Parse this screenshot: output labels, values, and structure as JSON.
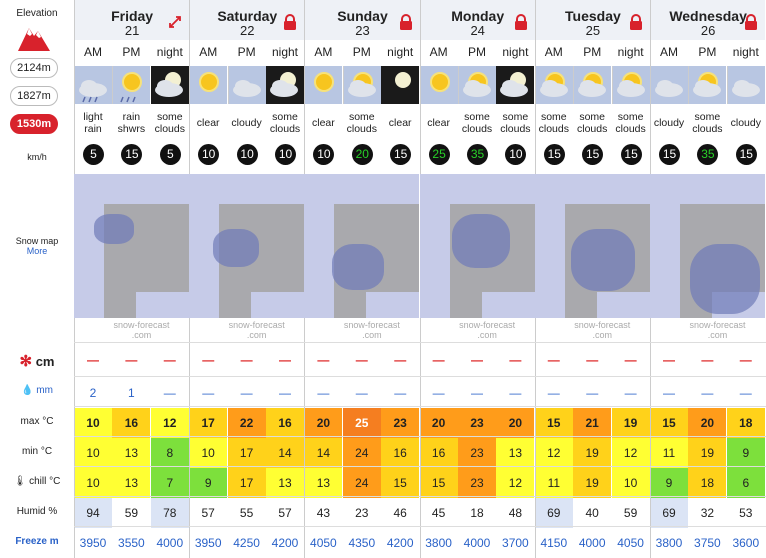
{
  "sidebar": {
    "elevation_label": "Elevation",
    "elevations": [
      "2124m",
      "1827m",
      "1530m"
    ],
    "active_elevation": "1530m",
    "wind_unit": "km/h",
    "snow_map_label": "Snow map",
    "more_link": "More",
    "snow_label": "cm",
    "rain_label": "mm",
    "max_label": "max °C",
    "min_label": "min °C",
    "chill_label": "chill °C",
    "humid_label": "Humid %",
    "freeze_label": "Freeze m"
  },
  "days": [
    {
      "name": "Friday",
      "num": "21",
      "icon": "expand-arrows-icon"
    },
    {
      "name": "Saturday",
      "num": "22",
      "icon": "lock-icon"
    },
    {
      "name": "Sunday",
      "num": "23",
      "icon": "lock-icon"
    },
    {
      "name": "Monday",
      "num": "24",
      "icon": "lock-icon"
    },
    {
      "name": "Tuesday",
      "num": "25",
      "icon": "lock-icon"
    },
    {
      "name": "Wednesday",
      "num": "26",
      "icon": "lock-icon"
    }
  ],
  "periods": [
    "AM",
    "PM",
    "night"
  ],
  "watermark": [
    "snow-forecast",
    ".com"
  ],
  "columns": [
    {
      "desc": "light rain",
      "wind": "5",
      "snow": "—",
      "rain": "2",
      "max": "10",
      "min": "10",
      "chill": "10",
      "humid": "94",
      "freeze": "3950",
      "icon": "cloud-rain-icon"
    },
    {
      "desc": "rain shwrs",
      "wind": "15",
      "snow": "—",
      "rain": "1",
      "max": "16",
      "min": "13",
      "chill": "13",
      "humid": "59",
      "freeze": "3550",
      "icon": "sun-rain-icon"
    },
    {
      "desc": "some clouds",
      "wind": "5",
      "snow": "—",
      "rain": "—",
      "max": "12",
      "min": "8",
      "chill": "7",
      "humid": "78",
      "freeze": "4000",
      "icon": "moon-cloud-icon"
    },
    {
      "desc": "clear",
      "wind": "10",
      "snow": "—",
      "rain": "—",
      "max": "17",
      "min": "10",
      "chill": "9",
      "humid": "57",
      "freeze": "3950",
      "icon": "sun-icon"
    },
    {
      "desc": "cloudy",
      "wind": "10",
      "snow": "—",
      "rain": "—",
      "max": "22",
      "min": "17",
      "chill": "17",
      "humid": "55",
      "freeze": "4250",
      "icon": "cloud-icon"
    },
    {
      "desc": "some clouds",
      "wind": "10",
      "snow": "—",
      "rain": "—",
      "max": "16",
      "min": "14",
      "chill": "13",
      "humid": "57",
      "freeze": "4200",
      "icon": "moon-cloud-icon"
    },
    {
      "desc": "clear",
      "wind": "10",
      "snow": "—",
      "rain": "—",
      "max": "20",
      "min": "14",
      "chill": "13",
      "humid": "43",
      "freeze": "4050",
      "icon": "sun-icon"
    },
    {
      "desc": "some clouds",
      "wind": "20",
      "snow": "—",
      "rain": "—",
      "max": "25",
      "min": "24",
      "chill": "24",
      "humid": "23",
      "freeze": "4350",
      "icon": "sun-cloud-icon"
    },
    {
      "desc": "clear",
      "wind": "15",
      "snow": "—",
      "rain": "—",
      "max": "23",
      "min": "16",
      "chill": "15",
      "humid": "46",
      "freeze": "4200",
      "icon": "moon-icon"
    },
    {
      "desc": "clear",
      "wind": "25",
      "snow": "—",
      "rain": "—",
      "max": "20",
      "min": "16",
      "chill": "15",
      "humid": "45",
      "freeze": "3800",
      "icon": "sun-icon"
    },
    {
      "desc": "some clouds",
      "wind": "35",
      "snow": "—",
      "rain": "—",
      "max": "23",
      "min": "23",
      "chill": "23",
      "humid": "18",
      "freeze": "4000",
      "icon": "sun-cloud-icon"
    },
    {
      "desc": "some clouds",
      "wind": "10",
      "snow": "—",
      "rain": "—",
      "max": "20",
      "min": "13",
      "chill": "12",
      "humid": "48",
      "freeze": "3700",
      "icon": "moon-cloud-icon"
    },
    {
      "desc": "some clouds",
      "wind": "15",
      "snow": "—",
      "rain": "—",
      "max": "15",
      "min": "12",
      "chill": "11",
      "humid": "69",
      "freeze": "4150",
      "icon": "sun-cloud-icon"
    },
    {
      "desc": "some clouds",
      "wind": "15",
      "snow": "—",
      "rain": "—",
      "max": "21",
      "min": "19",
      "chill": "19",
      "humid": "40",
      "freeze": "4000",
      "icon": "sun-cloud-icon"
    },
    {
      "desc": "some clouds",
      "wind": "15",
      "snow": "—",
      "rain": "—",
      "max": "19",
      "min": "12",
      "chill": "10",
      "humid": "59",
      "freeze": "4050",
      "icon": "sun-cloud-icon"
    },
    {
      "desc": "cloudy",
      "wind": "15",
      "snow": "—",
      "rain": "—",
      "max": "15",
      "min": "11",
      "chill": "9",
      "humid": "69",
      "freeze": "3800",
      "icon": "cloud-icon"
    },
    {
      "desc": "some clouds",
      "wind": "35",
      "snow": "—",
      "rain": "—",
      "max": "20",
      "min": "19",
      "chill": "18",
      "humid": "32",
      "freeze": "3750",
      "icon": "sun-cloud-icon"
    },
    {
      "desc": "cloudy",
      "wind": "15",
      "snow": "—",
      "rain": "—",
      "max": "18",
      "min": "9",
      "chill": "6",
      "humid": "53",
      "freeze": "3600",
      "icon": "cloud-icon"
    }
  ],
  "colors": {
    "active_elevation": "#d8222c",
    "lock": "#d8222c",
    "wind_green": "#28d028",
    "temp_scale": {
      "6-9": "#7de03c",
      "10-13": "#ffff33",
      "14-19": "#ffd21a",
      "20-24": "#ff9c1a",
      "25": "#f57e20"
    }
  }
}
